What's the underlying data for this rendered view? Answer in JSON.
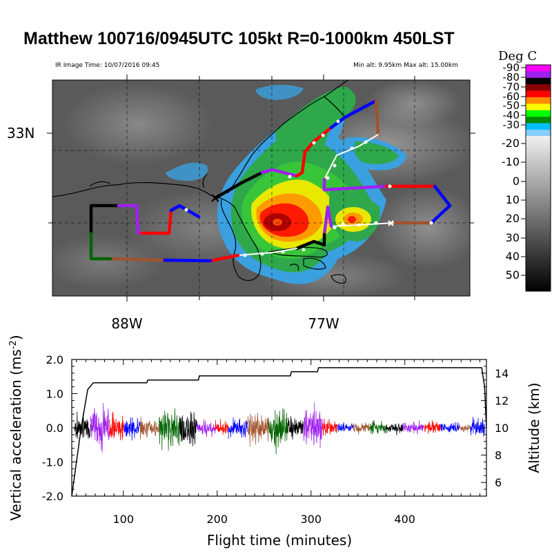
{
  "header": {
    "title": "Matthew 100716/0945UTC 105kt  R=0-1000km 450LST",
    "image_time": "IR Image Time: 10/07/2016 09:45",
    "alt_range": "Min alt:  9.95km  Max alt: 15.00km"
  },
  "map": {
    "lat_label": "33N",
    "lon_labels": [
      "88W",
      "77W"
    ]
  },
  "colorbar": {
    "title": "Deg C",
    "labels": [
      "-90",
      "-80",
      "-70",
      "-60",
      "-50",
      "-40",
      "-30",
      "-20",
      "-10",
      "0",
      "10",
      "20",
      "30",
      "40",
      "50"
    ],
    "colors": [
      "#ff00ff",
      "#a020f0",
      "#000000",
      "#8b0000",
      "#ff0000",
      "#ff8c00",
      "#ffff00",
      "#00ff00",
      "#008b00",
      "#00bfff",
      "#87cefa"
    ]
  },
  "track_colors": {
    "black": "#000000",
    "purple": "#a020f0",
    "red": "#ff0000",
    "blue": "#0000ff",
    "brown": "#a0522d",
    "green": "#006400"
  },
  "chart_data": {
    "type": "line",
    "xlabel": "Flight time (minutes)",
    "ylabel": "Vertical acceleration (ms<sup>-2</sup>)",
    "ylabel_right": "Altitude (km)",
    "xlim": [
      45,
      487
    ],
    "ylim": [
      -2.0,
      2.0
    ],
    "ylim_right": [
      5,
      15
    ],
    "x_ticks": [
      100,
      200,
      300,
      400
    ],
    "y_ticks": [
      "2.0",
      "1.0",
      "0.0",
      "-1.0",
      "-2.0"
    ],
    "y_ticks_right": [
      "14",
      "12",
      "10",
      "8",
      "6"
    ],
    "altitude_series": {
      "x": [
        45,
        55,
        62,
        68,
        125,
        126,
        180,
        181,
        278,
        279,
        307,
        308,
        482,
        485,
        487
      ],
      "y": [
        5.0,
        10.0,
        12.8,
        13.3,
        13.3,
        13.5,
        13.5,
        13.8,
        13.8,
        14.1,
        14.1,
        14.4,
        14.4,
        13.0,
        10.0
      ]
    },
    "segments": [
      {
        "x0": 48,
        "x1": 65,
        "color": "black",
        "amp": 0.55
      },
      {
        "x0": 65,
        "x1": 85,
        "color": "purple",
        "amp": 0.95
      },
      {
        "x0": 85,
        "x1": 100,
        "color": "red",
        "amp": 0.6
      },
      {
        "x0": 100,
        "x1": 118,
        "color": "blue",
        "amp": 0.4
      },
      {
        "x0": 118,
        "x1": 138,
        "color": "brown",
        "amp": 0.35
      },
      {
        "x0": 138,
        "x1": 160,
        "color": "green",
        "amp": 0.7
      },
      {
        "x0": 160,
        "x1": 178,
        "color": "black",
        "amp": 0.75
      },
      {
        "x0": 178,
        "x1": 198,
        "color": "purple",
        "amp": 0.3
      },
      {
        "x0": 198,
        "x1": 212,
        "color": "red",
        "amp": 0.3
      },
      {
        "x0": 212,
        "x1": 232,
        "color": "blue",
        "amp": 0.35
      },
      {
        "x0": 232,
        "x1": 255,
        "color": "brown",
        "amp": 0.6
      },
      {
        "x0": 255,
        "x1": 275,
        "color": "green",
        "amp": 0.8
      },
      {
        "x0": 275,
        "x1": 292,
        "color": "black",
        "amp": 0.4
      },
      {
        "x0": 292,
        "x1": 312,
        "color": "purple",
        "amp": 0.85
      },
      {
        "x0": 312,
        "x1": 328,
        "color": "red",
        "amp": 0.35
      },
      {
        "x0": 328,
        "x1": 345,
        "color": "blue",
        "amp": 0.2
      },
      {
        "x0": 345,
        "x1": 362,
        "color": "brown",
        "amp": 0.25
      },
      {
        "x0": 362,
        "x1": 380,
        "color": "green",
        "amp": 0.25
      },
      {
        "x0": 380,
        "x1": 398,
        "color": "black",
        "amp": 0.25
      },
      {
        "x0": 398,
        "x1": 420,
        "color": "purple",
        "amp": 0.25
      },
      {
        "x0": 420,
        "x1": 438,
        "color": "red",
        "amp": 0.25
      },
      {
        "x0": 438,
        "x1": 458,
        "color": "blue",
        "amp": 0.2
      },
      {
        "x0": 458,
        "x1": 470,
        "color": "brown",
        "amp": 0.15
      },
      {
        "x0": 470,
        "x1": 485,
        "color": "blue",
        "amp": 0.4
      }
    ]
  }
}
